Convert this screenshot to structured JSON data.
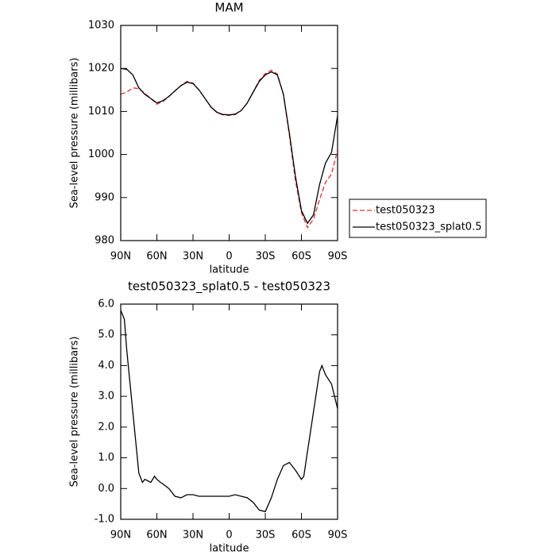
{
  "chart_data": [
    {
      "type": "line",
      "title": "MAM",
      "xlabel": "latitude",
      "ylabel": "Sea-level pressure (millibars)",
      "x": [
        90,
        85,
        80,
        75,
        70,
        65,
        60,
        55,
        50,
        45,
        40,
        35,
        30,
        25,
        20,
        15,
        10,
        5,
        0,
        -5,
        -10,
        -15,
        -20,
        -25,
        -30,
        -35,
        -40,
        -45,
        -50,
        -55,
        -60,
        -65,
        -70,
        -75,
        -80,
        -85,
        -90
      ],
      "series": [
        {
          "name": "test050323",
          "color": "#e03030",
          "dash": true,
          "values": [
            1014,
            1014.5,
            1015.5,
            1015.3,
            1014.2,
            1013,
            1011.7,
            1012.3,
            1013.5,
            1014.8,
            1016,
            1017,
            1016.6,
            1015,
            1013,
            1011,
            1009.7,
            1009.2,
            1009.1,
            1009.3,
            1010.2,
            1012,
            1014.6,
            1017.2,
            1018.8,
            1019.6,
            1018.7,
            1014,
            1004.5,
            994,
            986.5,
            983,
            985,
            989.5,
            993.5,
            995.5,
            1001
          ]
        },
        {
          "name": "test050323_splat0.5",
          "color": "#000000",
          "dash": false,
          "values": [
            1020,
            1019.8,
            1018.5,
            1015.5,
            1014,
            1013,
            1012,
            1012.5,
            1013.5,
            1014.8,
            1016,
            1016.8,
            1016.5,
            1015,
            1013,
            1011,
            1009.8,
            1009.3,
            1009.2,
            1009.4,
            1010.2,
            1012,
            1014.5,
            1017,
            1018.5,
            1019.2,
            1018.5,
            1014,
            1005,
            995,
            987,
            984,
            986,
            993,
            998,
            1000.5,
            1009
          ]
        }
      ],
      "xlim": [
        90,
        -90
      ],
      "xticks": [
        {
          "value": 90,
          "label": "90N"
        },
        {
          "value": 60,
          "label": "60N"
        },
        {
          "value": 30,
          "label": "30N"
        },
        0,
        {
          "value": -30,
          "label": "30S"
        },
        {
          "value": -60,
          "label": "60S"
        },
        {
          "value": -90,
          "label": "90S"
        }
      ],
      "ylim": [
        980,
        1030
      ],
      "yticks": [
        980,
        990,
        1000,
        1010,
        1020,
        1030
      ],
      "legend": "right"
    },
    {
      "type": "line",
      "title": "test050323_splat0.5 - test050323",
      "xlabel": "latitude",
      "ylabel": "Sea-level pressure (millibars)",
      "x": [
        90,
        87,
        85,
        80,
        75,
        72,
        70,
        65,
        62,
        60,
        57,
        55,
        50,
        45,
        40,
        35,
        30,
        25,
        20,
        15,
        10,
        0,
        -5,
        -10,
        -15,
        -20,
        -25,
        -30,
        -35,
        -40,
        -45,
        -50,
        -55,
        -60,
        -62,
        -65,
        -70,
        -75,
        -77,
        -80,
        -85,
        -90
      ],
      "series": [
        {
          "name": null,
          "color": "#000000",
          "dash": false,
          "values": [
            5.8,
            5.5,
            4.5,
            2.5,
            0.5,
            0.2,
            0.3,
            0.2,
            0.4,
            0.3,
            0.2,
            0.15,
            0,
            -0.25,
            -0.3,
            -0.2,
            -0.2,
            -0.25,
            -0.25,
            -0.25,
            -0.25,
            -0.25,
            -0.2,
            -0.25,
            -0.3,
            -0.45,
            -0.7,
            -0.75,
            -0.3,
            0.3,
            0.75,
            0.85,
            0.6,
            0.3,
            0.4,
            1.2,
            2.5,
            3.8,
            4.0,
            3.7,
            3.4,
            2.6
          ]
        }
      ],
      "xlim": [
        90,
        -90
      ],
      "xticks": [
        {
          "value": 90,
          "label": "90N"
        },
        {
          "value": 60,
          "label": "60N"
        },
        {
          "value": 30,
          "label": "30N"
        },
        0,
        {
          "value": -30,
          "label": "30S"
        },
        {
          "value": -60,
          "label": "60S"
        },
        {
          "value": -90,
          "label": "90S"
        }
      ],
      "ylim": [
        -1,
        6
      ],
      "yticks": [
        {
          "value": -1,
          "label": "-1.0"
        },
        {
          "value": 0,
          "label": "0.0"
        },
        {
          "value": 1,
          "label": "1.0"
        },
        {
          "value": 2,
          "label": "2.0"
        },
        {
          "value": 3,
          "label": "3.0"
        },
        {
          "value": 4,
          "label": "4.0"
        },
        {
          "value": 5,
          "label": "5.0"
        },
        {
          "value": 6,
          "label": "6.0"
        }
      ]
    }
  ]
}
